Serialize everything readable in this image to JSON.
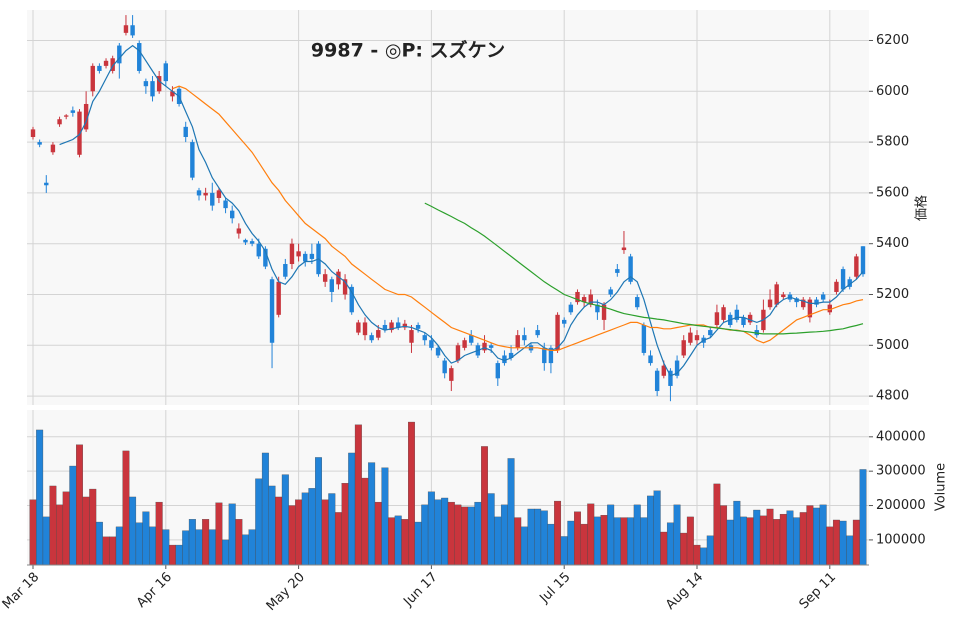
{
  "chart_data": {
    "type": "candlestick",
    "title": "9987 - ◎P: スズケン",
    "ylabel": "価格",
    "up_color": "#c9353d",
    "down_color": "#2183d8",
    "grid": true,
    "categories": [
      "Mar 18",
      null,
      null,
      null,
      null,
      null,
      null,
      null,
      null,
      null,
      null,
      null,
      null,
      null,
      null,
      null,
      null,
      null,
      null,
      null,
      "Apr 16",
      null,
      null,
      null,
      null,
      null,
      null,
      null,
      null,
      null,
      null,
      null,
      null,
      null,
      null,
      null,
      null,
      null,
      null,
      null,
      "May 20",
      null,
      null,
      null,
      null,
      null,
      null,
      null,
      null,
      null,
      null,
      null,
      null,
      null,
      null,
      null,
      null,
      null,
      null,
      null,
      "Jun 17",
      null,
      null,
      null,
      null,
      null,
      null,
      null,
      null,
      null,
      null,
      null,
      null,
      null,
      null,
      null,
      null,
      null,
      null,
      null,
      "Jul 15",
      null,
      null,
      null,
      null,
      null,
      null,
      null,
      null,
      null,
      null,
      null,
      null,
      null,
      null,
      null,
      null,
      null,
      null,
      null,
      "Aug 14",
      null,
      null,
      null,
      null,
      null,
      null,
      null,
      null,
      null,
      null,
      null,
      null,
      null,
      null,
      null,
      null,
      null,
      null,
      null,
      "Sep 11",
      null,
      null,
      null,
      null,
      null
    ],
    "candles": [
      [
        5820,
        5860,
        5810,
        5850
      ],
      [
        5800,
        5810,
        5780,
        5790
      ],
      [
        5640,
        5670,
        5600,
        5630
      ],
      [
        5760,
        5800,
        5750,
        5790
      ],
      [
        5870,
        5900,
        5860,
        5890
      ],
      [
        5900,
        5910,
        5890,
        5905
      ],
      [
        5925,
        5940,
        5900,
        5915
      ],
      [
        5750,
        5930,
        5740,
        5920
      ],
      [
        5850,
        6000,
        5840,
        5950
      ],
      [
        6000,
        6110,
        5980,
        6100
      ],
      [
        6100,
        6110,
        6070,
        6080
      ],
      [
        6100,
        6130,
        6090,
        6120
      ],
      [
        6080,
        6140,
        6070,
        6130
      ],
      [
        6180,
        6190,
        6050,
        6110
      ],
      [
        6230,
        6300,
        6220,
        6260
      ],
      [
        6260,
        6300,
        6210,
        6220
      ],
      [
        6190,
        6200,
        6070,
        6080
      ],
      [
        6040,
        6050,
        5990,
        6020
      ],
      [
        6040,
        6060,
        5960,
        5980
      ],
      [
        6000,
        6080,
        5990,
        6060
      ],
      [
        6110,
        6120,
        6020,
        6040
      ],
      [
        5980,
        6020,
        5960,
        6000
      ],
      [
        6010,
        6020,
        5940,
        5950
      ],
      [
        5860,
        5880,
        5800,
        5820
      ],
      [
        5800,
        5810,
        5650,
        5660
      ],
      [
        5610,
        5620,
        5570,
        5590
      ],
      [
        5590,
        5620,
        5570,
        5600
      ],
      [
        5600,
        5640,
        5530,
        5550
      ],
      [
        5580,
        5620,
        5560,
        5610
      ],
      [
        5570,
        5580,
        5520,
        5540
      ],
      [
        5530,
        5550,
        5480,
        5500
      ],
      [
        5440,
        5480,
        5420,
        5460
      ],
      [
        5415,
        5420,
        5395,
        5405
      ],
      [
        5410,
        5420,
        5390,
        5400
      ],
      [
        5400,
        5420,
        5340,
        5350
      ],
      [
        5380,
        5390,
        5300,
        5310
      ],
      [
        5260,
        5270,
        4910,
        5010
      ],
      [
        5120,
        5270,
        5110,
        5250
      ],
      [
        5320,
        5340,
        5260,
        5270
      ],
      [
        5320,
        5420,
        5300,
        5400
      ],
      [
        5350,
        5400,
        5330,
        5370
      ],
      [
        5360,
        5370,
        5310,
        5330
      ],
      [
        5360,
        5400,
        5320,
        5340
      ],
      [
        5400,
        5410,
        5270,
        5280
      ],
      [
        5250,
        5300,
        5230,
        5280
      ],
      [
        5260,
        5270,
        5170,
        5210
      ],
      [
        5240,
        5300,
        5220,
        5290
      ],
      [
        5200,
        5280,
        5180,
        5260
      ],
      [
        5230,
        5240,
        5120,
        5130
      ],
      [
        5050,
        5100,
        5040,
        5090
      ],
      [
        5040,
        5110,
        5020,
        5090
      ],
      [
        5040,
        5050,
        5010,
        5020
      ],
      [
        5030,
        5080,
        5020,
        5060
      ],
      [
        5080,
        5100,
        5050,
        5060
      ],
      [
        5060,
        5100,
        5050,
        5090
      ],
      [
        5090,
        5110,
        5060,
        5070
      ],
      [
        5070,
        5100,
        5060,
        5085
      ],
      [
        5010,
        5080,
        4970,
        5060
      ],
      [
        5080,
        5090,
        5050,
        5065
      ],
      [
        5040,
        5050,
        5000,
        5020
      ],
      [
        5020,
        5040,
        4980,
        4990
      ],
      [
        4990,
        5000,
        4950,
        4960
      ],
      [
        4940,
        4950,
        4870,
        4890
      ],
      [
        4860,
        4920,
        4820,
        4910
      ],
      [
        4940,
        5010,
        4930,
        5000
      ],
      [
        4990,
        5030,
        4980,
        5020
      ],
      [
        5040,
        5060,
        5000,
        5010
      ],
      [
        5000,
        5010,
        4950,
        4960
      ],
      [
        4980,
        5040,
        4970,
        5010
      ],
      [
        5000,
        5010,
        4970,
        4990
      ],
      [
        4930,
        4940,
        4840,
        4870
      ],
      [
        4960,
        4980,
        4920,
        4930
      ],
      [
        4970,
        5000,
        4940,
        4950
      ],
      [
        4990,
        5060,
        4980,
        5040
      ],
      [
        5040,
        5070,
        5000,
        5020
      ],
      [
        5000,
        5010,
        4970,
        4980
      ],
      [
        5060,
        5080,
        5030,
        5040
      ],
      [
        4990,
        5010,
        4900,
        4930
      ],
      [
        4990,
        5000,
        4890,
        4930
      ],
      [
        4980,
        5130,
        4970,
        5120
      ],
      [
        5100,
        5110,
        5070,
        5085
      ],
      [
        5160,
        5170,
        5120,
        5130
      ],
      [
        5170,
        5220,
        5160,
        5210
      ],
      [
        5170,
        5200,
        5150,
        5190
      ],
      [
        5160,
        5220,
        5150,
        5200
      ],
      [
        5160,
        5180,
        5100,
        5130
      ],
      [
        5100,
        5170,
        5060,
        5160
      ],
      [
        5220,
        5230,
        5190,
        5200
      ],
      [
        5300,
        5320,
        5270,
        5285
      ],
      [
        5375,
        5450,
        5360,
        5385
      ],
      [
        5350,
        5360,
        5240,
        5250
      ],
      [
        5190,
        5200,
        5140,
        5150
      ],
      [
        5080,
        5090,
        4960,
        4970
      ],
      [
        4960,
        4980,
        4920,
        4930
      ],
      [
        4900,
        4910,
        4800,
        4820
      ],
      [
        4880,
        4940,
        4870,
        4920
      ],
      [
        4900,
        4910,
        4780,
        4840
      ],
      [
        4940,
        4960,
        4870,
        4880
      ],
      [
        4960,
        5040,
        4950,
        5020
      ],
      [
        5010,
        5070,
        5000,
        5050
      ],
      [
        5020,
        5060,
        5000,
        5040
      ],
      [
        5030,
        5040,
        4990,
        5010
      ],
      [
        5060,
        5070,
        5030,
        5040
      ],
      [
        5080,
        5160,
        5070,
        5130
      ],
      [
        5100,
        5160,
        5090,
        5150
      ],
      [
        5120,
        5130,
        5070,
        5080
      ],
      [
        5140,
        5160,
        5090,
        5100
      ],
      [
        5110,
        5120,
        5070,
        5080
      ],
      [
        5090,
        5130,
        5080,
        5120
      ],
      [
        5060,
        5080,
        5030,
        5040
      ],
      [
        5060,
        5180,
        5050,
        5140
      ],
      [
        5150,
        5220,
        5140,
        5180
      ],
      [
        5160,
        5250,
        5150,
        5240
      ],
      [
        5190,
        5210,
        5180,
        5200
      ],
      [
        5200,
        5210,
        5170,
        5180
      ],
      [
        5185,
        5190,
        5150,
        5170
      ],
      [
        5150,
        5190,
        5140,
        5180
      ],
      [
        5110,
        5190,
        5090,
        5180
      ],
      [
        5180,
        5190,
        5150,
        5160
      ],
      [
        5200,
        5210,
        5170,
        5180
      ],
      [
        5130,
        5180,
        5120,
        5160
      ],
      [
        5210,
        5260,
        5200,
        5250
      ],
      [
        5300,
        5310,
        5210,
        5220
      ],
      [
        5260,
        5270,
        5220,
        5230
      ],
      [
        5270,
        5360,
        5260,
        5350
      ],
      [
        5390,
        5390,
        5270,
        5280
      ]
    ],
    "moving_averages": [
      {
        "color": "#1f77b4",
        "values": [
          null,
          null,
          null,
          null,
          5790,
          5800,
          5810,
          5830,
          5880,
          5960,
          6000,
          6050,
          6100,
          6130,
          6160,
          6180,
          6160,
          6120,
          6080,
          6040,
          6020,
          6000,
          5980,
          5920,
          5860,
          5770,
          5720,
          5660,
          5620,
          5580,
          5560,
          5530,
          5480,
          5440,
          5410,
          5370,
          5300,
          5250,
          5240,
          5270,
          5310,
          5330,
          5330,
          5340,
          5320,
          5290,
          5270,
          5250,
          5210,
          5160,
          5120,
          5090,
          5070,
          5060,
          5065,
          5070,
          5075,
          5070,
          5060,
          5050,
          5030,
          5000,
          4960,
          4930,
          4940,
          4960,
          4970,
          4980,
          4990,
          4980,
          4950,
          4940,
          4950,
          4970,
          4990,
          5010,
          5010,
          4990,
          4980,
          4990,
          5020,
          5080,
          5120,
          5150,
          5170,
          5170,
          5160,
          5180,
          5210,
          5250,
          5270,
          5250,
          5180,
          5090,
          5000,
          4930,
          4880,
          4890,
          4920,
          4960,
          5000,
          5020,
          5030,
          5060,
          5090,
          5100,
          5110,
          5110,
          5100,
          5090,
          5100,
          5120,
          5160,
          5180,
          5190,
          5180,
          5175,
          5165,
          5165,
          5170,
          5170,
          5190,
          5220,
          5240,
          5260,
          5290
        ]
      },
      {
        "color": "#ff7f0e",
        "values": [
          null,
          null,
          null,
          null,
          null,
          null,
          null,
          null,
          null,
          null,
          null,
          null,
          null,
          null,
          null,
          null,
          null,
          null,
          null,
          null,
          null,
          6010,
          6020,
          6010,
          5990,
          5970,
          5950,
          5930,
          5910,
          5880,
          5850,
          5820,
          5790,
          5760,
          5720,
          5680,
          5640,
          5610,
          5570,
          5540,
          5510,
          5480,
          5460,
          5440,
          5420,
          5390,
          5370,
          5350,
          5320,
          5300,
          5280,
          5260,
          5240,
          5220,
          5210,
          5200,
          5200,
          5190,
          5170,
          5150,
          5130,
          5110,
          5090,
          5070,
          5060,
          5050,
          5040,
          5030,
          5020,
          5010,
          5000,
          4995,
          4990,
          4990,
          4990,
          4990,
          4990,
          4985,
          4980,
          4980,
          4990,
          5000,
          5010,
          5020,
          5030,
          5040,
          5050,
          5060,
          5070,
          5080,
          5090,
          5090,
          5080,
          5070,
          5070,
          5065,
          5065,
          5070,
          5075,
          5080,
          5080,
          5080,
          5070,
          5070,
          5065,
          5060,
          5060,
          5055,
          5040,
          5020,
          5010,
          5020,
          5040,
          5060,
          5080,
          5100,
          5110,
          5120,
          5130,
          5140,
          5140,
          5150,
          5160,
          5165,
          5175,
          5180
        ]
      },
      {
        "color": "#2ca02c",
        "values": [
          null,
          null,
          null,
          null,
          null,
          null,
          null,
          null,
          null,
          null,
          null,
          null,
          null,
          null,
          null,
          null,
          null,
          null,
          null,
          null,
          null,
          null,
          null,
          null,
          null,
          null,
          null,
          null,
          null,
          null,
          null,
          null,
          null,
          null,
          null,
          null,
          null,
          null,
          null,
          null,
          null,
          null,
          null,
          null,
          null,
          null,
          null,
          null,
          null,
          null,
          null,
          null,
          null,
          null,
          null,
          null,
          null,
          null,
          null,
          5560,
          5547,
          5533,
          5520,
          5507,
          5493,
          5480,
          5463,
          5447,
          5430,
          5410,
          5390,
          5370,
          5350,
          5330,
          5310,
          5290,
          5270,
          5250,
          5233,
          5217,
          5200,
          5190,
          5180,
          5170,
          5163,
          5157,
          5150,
          5142,
          5133,
          5125,
          5120,
          5115,
          5110,
          5107,
          5103,
          5100,
          5095,
          5090,
          5085,
          5082,
          5078,
          5075,
          5072,
          5068,
          5065,
          5062,
          5058,
          5055,
          5052,
          5048,
          5045,
          5045,
          5045,
          5045,
          5047,
          5048,
          5050,
          5052,
          5053,
          5055,
          5058,
          5062,
          5065,
          5072,
          5078,
          5085
        ]
      }
    ],
    "ylim": [
      4765,
      6320
    ],
    "yticks": [
      4800,
      5000,
      5200,
      5400,
      5600,
      5800,
      6000,
      6200
    ],
    "volume": {
      "ylabel": "Volume",
      "ylim": [
        27000,
        478000
      ],
      "yticks": [
        100000,
        200000,
        300000,
        400000
      ],
      "values": [
        217000,
        420000,
        167000,
        257000,
        202000,
        240000,
        315000,
        377000,
        225000,
        248000,
        152000,
        109000,
        109000,
        138000,
        359000,
        225000,
        150000,
        182000,
        138000,
        210000,
        130000,
        85000,
        85000,
        127000,
        160000,
        130000,
        160000,
        130000,
        208000,
        100000,
        205000,
        160000,
        115000,
        130000,
        278000,
        353000,
        257000,
        225000,
        290000,
        200000,
        217000,
        237000,
        250000,
        340000,
        217000,
        235000,
        180000,
        265000,
        353000,
        435000,
        280000,
        325000,
        210000,
        310000,
        165000,
        170000,
        160000,
        443000,
        152000,
        202000,
        240000,
        217000,
        222000,
        210000,
        202000,
        196000,
        196000,
        210000,
        372000,
        235000,
        167000,
        202000,
        337000,
        165000,
        138000,
        190000,
        190000,
        185000,
        146000,
        213000,
        110000,
        155000,
        182000,
        146000,
        205000,
        167000,
        172000,
        202000,
        165000,
        165000,
        165000,
        202000,
        165000,
        228000,
        243000,
        123000,
        150000,
        202000,
        120000,
        167000,
        85000,
        77000,
        112000,
        263000,
        200000,
        158000,
        213000,
        167000,
        165000,
        187000,
        170000,
        190000,
        160000,
        175000,
        185000,
        165000,
        180000,
        200000,
        193000,
        202000,
        138000,
        158000,
        155000,
        112000,
        158000,
        305000
      ]
    }
  }
}
